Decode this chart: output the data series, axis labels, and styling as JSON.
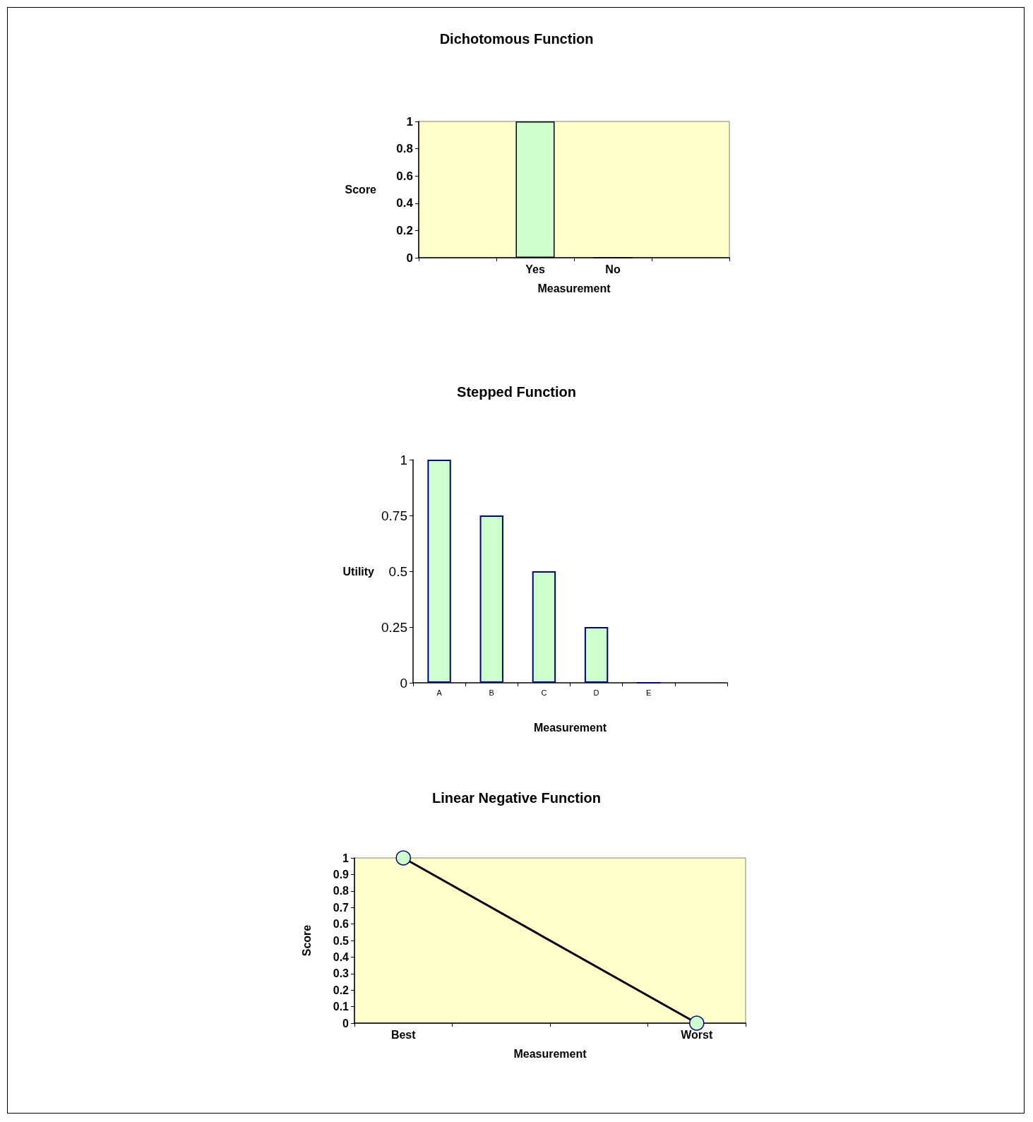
{
  "chart_data": [
    {
      "type": "bar",
      "title": "Dichotomous Function",
      "xlabel": "Measurement",
      "ylabel": "Score",
      "categories": [
        null,
        "Yes",
        "No",
        null
      ],
      "values": [
        null,
        1,
        0,
        null
      ],
      "color": "#ccffcc",
      "ylim": [
        0,
        1
      ],
      "yticks": [
        0,
        0.2,
        0.4,
        0.6,
        0.8,
        1
      ]
    },
    {
      "type": "bar",
      "title": "Stepped Function",
      "xlabel": "Measurement",
      "ylabel": "Utility",
      "categories": [
        "A",
        "B",
        "C",
        "D",
        "E",
        null
      ],
      "values": [
        1,
        0.75,
        0.5,
        0.25,
        0,
        null
      ],
      "color": "#ccffcc",
      "colors": [
        "#ccffcc",
        "#ccffcc",
        "#ccffcc",
        "#ccffcc",
        "#000080",
        null
      ],
      "ylim": [
        0,
        1
      ],
      "yticks": [
        0,
        0.25,
        0.5,
        0.75,
        1
      ]
    },
    {
      "type": "line",
      "title": "Linear Negative Function",
      "xlabel": "Measurement",
      "ylabel": "Score",
      "categories": [
        "Best",
        null,
        null,
        "Worst"
      ],
      "values": [
        1,
        null,
        null,
        0
      ],
      "color": "#000000",
      "marker": "circle",
      "ylim": [
        0,
        1
      ],
      "yticks": [
        0,
        0.1,
        0.2,
        0.3,
        0.4,
        0.5,
        0.6,
        0.7,
        0.8,
        0.9,
        1
      ]
    }
  ]
}
